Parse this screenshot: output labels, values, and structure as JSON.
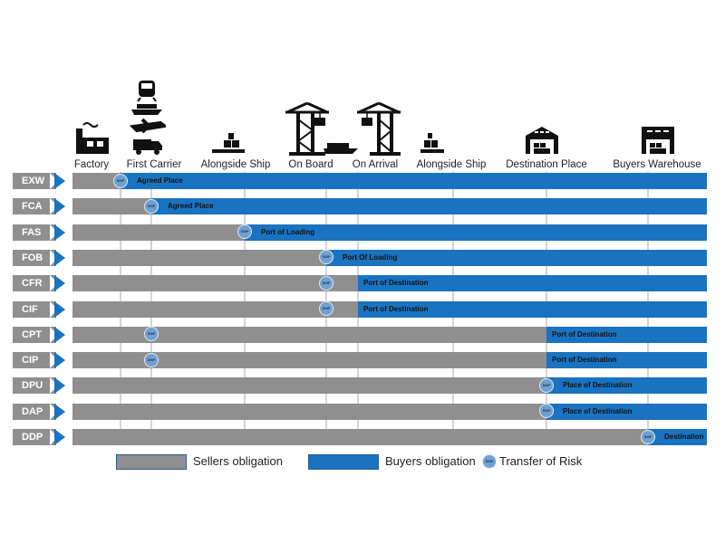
{
  "stages": [
    "Factory",
    "First Carrier",
    "Alongside Ship",
    "On Board",
    "On Arrival",
    "Alongside Ship",
    "Destination Place",
    "Buyers Warehouse"
  ],
  "marker_label": "SMP",
  "rows": [
    {
      "term": "EXW",
      "risk_stage": 0,
      "buyer_from_stage": 0,
      "place": "Agreed Place"
    },
    {
      "term": "FCA",
      "risk_stage": 1,
      "buyer_from_stage": 1,
      "place": "Agreed Place"
    },
    {
      "term": "FAS",
      "risk_stage": 2,
      "buyer_from_stage": 2,
      "place": "Port of Loading"
    },
    {
      "term": "FOB",
      "risk_stage": 3,
      "buyer_from_stage": 3,
      "place": "Port Of Loading"
    },
    {
      "term": "CFR",
      "risk_stage": 3,
      "buyer_from_stage": 4,
      "place": "Port of Destination"
    },
    {
      "term": "CIF",
      "risk_stage": 3,
      "buyer_from_stage": 4,
      "place": "Port of Destination"
    },
    {
      "term": "CPT",
      "risk_stage": 1,
      "buyer_from_stage": 6,
      "place": "Port of Destination"
    },
    {
      "term": "CIP",
      "risk_stage": 1,
      "buyer_from_stage": 6,
      "place": "Port of Destination"
    },
    {
      "term": "DPU",
      "risk_stage": 6,
      "buyer_from_stage": 6,
      "place": "Place of Destination"
    },
    {
      "term": "DAP",
      "risk_stage": 6,
      "buyer_from_stage": 6,
      "place": "Place of Destination"
    },
    {
      "term": "DDP",
      "risk_stage": 7,
      "buyer_from_stage": 7,
      "place": "Destination"
    }
  ],
  "legend": {
    "sellers": "Sellers obligation",
    "buyers": "Buyers obligation",
    "risk": "Transfer of Risk"
  },
  "colors": {
    "sellers": "#8f8f8f",
    "buyers": "#1a73c0",
    "marker": "#6fa0d0"
  }
}
